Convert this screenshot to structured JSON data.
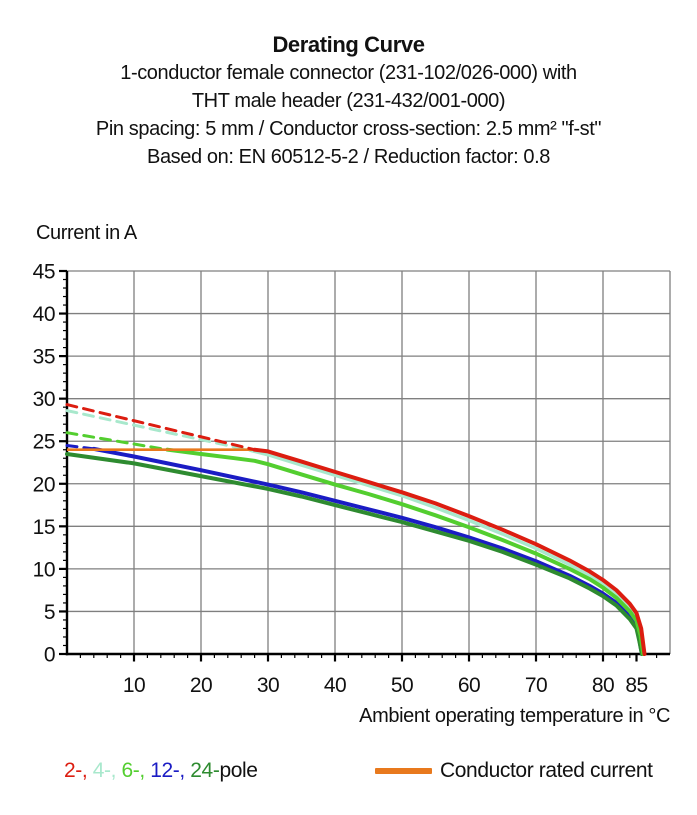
{
  "header": {
    "title": "Derating Curve",
    "subtitle_lines": [
      "1-conductor female connector (231-102/026-000) with",
      "THT male header (231-432/001-000)",
      "Pin spacing: 5 mm / Conductor cross-section: 2.5 mm² \"f-st\"",
      "Based on: EN 60512-5-2 / Reduction factor: 0.8"
    ]
  },
  "chart_data": {
    "type": "line",
    "title": "Derating Curve",
    "xlabel": "Ambient operating temperature in °C",
    "ylabel": "Current in A",
    "xlim": [
      0,
      90
    ],
    "ylim": [
      0,
      45
    ],
    "x_ticks": [
      10,
      20,
      30,
      40,
      50,
      60,
      70,
      80,
      85
    ],
    "y_ticks": [
      0,
      5,
      10,
      15,
      20,
      25,
      30,
      35,
      40,
      45
    ],
    "grid": true,
    "grid_color": "#7f7f7f",
    "axis_color": "#000000",
    "legend_position": "bottom",
    "series": [
      {
        "name": "2-pole",
        "color": "#dc1d10",
        "dashed_points": [
          [
            0,
            29.3
          ],
          [
            28,
            24.0
          ]
        ],
        "points": [
          [
            28,
            24.0
          ],
          [
            30,
            23.8
          ],
          [
            35,
            22.6
          ],
          [
            40,
            21.4
          ],
          [
            45,
            20.2
          ],
          [
            50,
            19.0
          ],
          [
            55,
            17.7
          ],
          [
            60,
            16.2
          ],
          [
            65,
            14.6
          ],
          [
            70,
            12.9
          ],
          [
            75,
            11.0
          ],
          [
            78,
            9.7
          ],
          [
            80,
            8.7
          ],
          [
            82,
            7.5
          ],
          [
            84,
            5.9
          ],
          [
            85,
            4.8
          ],
          [
            85.7,
            3.0
          ],
          [
            86.2,
            0
          ]
        ]
      },
      {
        "name": "4-pole",
        "color": "#a8e8cc",
        "dashed_points": [
          [
            0,
            28.6
          ],
          [
            27.5,
            23.9
          ]
        ],
        "points": [
          [
            27.5,
            23.9
          ],
          [
            30,
            23.4
          ],
          [
            35,
            22.2
          ],
          [
            40,
            21.0
          ],
          [
            45,
            19.8
          ],
          [
            50,
            18.6
          ],
          [
            55,
            17.2
          ],
          [
            60,
            15.7
          ],
          [
            65,
            14.1
          ],
          [
            70,
            12.4
          ],
          [
            75,
            10.5
          ],
          [
            78,
            9.2
          ],
          [
            80,
            8.2
          ],
          [
            82,
            7.0
          ],
          [
            84,
            5.4
          ],
          [
            85,
            4.3
          ],
          [
            85.6,
            2.5
          ],
          [
            86,
            0
          ]
        ]
      },
      {
        "name": "6-pole",
        "color": "#53ce2f",
        "dashed_points": [
          [
            0,
            26.0
          ],
          [
            15,
            24.0
          ]
        ],
        "points": [
          [
            15,
            24.0
          ],
          [
            20,
            23.5
          ],
          [
            25,
            23.0
          ],
          [
            28,
            22.7
          ],
          [
            30,
            22.3
          ],
          [
            35,
            21.1
          ],
          [
            40,
            19.9
          ],
          [
            45,
            18.8
          ],
          [
            50,
            17.6
          ],
          [
            55,
            16.3
          ],
          [
            60,
            14.9
          ],
          [
            65,
            13.4
          ],
          [
            70,
            11.8
          ],
          [
            75,
            10.0
          ],
          [
            78,
            8.8
          ],
          [
            80,
            7.8
          ],
          [
            82,
            6.6
          ],
          [
            84,
            5.0
          ],
          [
            85,
            3.9
          ],
          [
            85.6,
            2.2
          ],
          [
            86,
            0
          ]
        ]
      },
      {
        "name": "12-pole",
        "color": "#1b1cc4",
        "dashed_points": [
          [
            0,
            24.5
          ],
          [
            4,
            24.1
          ]
        ],
        "points": [
          [
            4,
            24.1
          ],
          [
            10,
            23.2
          ],
          [
            20,
            21.6
          ],
          [
            30,
            19.9
          ],
          [
            35,
            19.0
          ],
          [
            40,
            18.0
          ],
          [
            45,
            17.0
          ],
          [
            50,
            16.0
          ],
          [
            55,
            14.9
          ],
          [
            60,
            13.7
          ],
          [
            65,
            12.4
          ],
          [
            70,
            10.9
          ],
          [
            75,
            9.2
          ],
          [
            78,
            8.0
          ],
          [
            80,
            7.1
          ],
          [
            82,
            6.0
          ],
          [
            84,
            4.4
          ],
          [
            85,
            3.3
          ],
          [
            85.4,
            1.8
          ],
          [
            85.8,
            0
          ]
        ]
      },
      {
        "name": "24-pole",
        "color": "#2e8b30",
        "points": [
          [
            0,
            23.5
          ],
          [
            10,
            22.4
          ],
          [
            20,
            20.9
          ],
          [
            30,
            19.4
          ],
          [
            35,
            18.5
          ],
          [
            40,
            17.5
          ],
          [
            45,
            16.5
          ],
          [
            50,
            15.5
          ],
          [
            55,
            14.4
          ],
          [
            60,
            13.3
          ],
          [
            65,
            12.0
          ],
          [
            70,
            10.5
          ],
          [
            75,
            8.9
          ],
          [
            78,
            7.7
          ],
          [
            80,
            6.8
          ],
          [
            82,
            5.7
          ],
          [
            84,
            4.1
          ],
          [
            85,
            3.0
          ],
          [
            85.4,
            1.6
          ],
          [
            85.8,
            0
          ]
        ]
      },
      {
        "name": "Conductor rated current",
        "role": "rated",
        "color": "#e8791d",
        "points": [
          [
            0,
            24.0
          ],
          [
            28,
            24.0
          ]
        ]
      }
    ]
  },
  "legend": {
    "poles": [
      {
        "text": "2-, ",
        "color": "#dc1d10"
      },
      {
        "text": "4-, ",
        "color": "#a8e8cc"
      },
      {
        "text": "6-, ",
        "color": "#53ce2f"
      },
      {
        "text": "12-, ",
        "color": "#1b1cc4"
      },
      {
        "text": "24-",
        "color": "#2e8b30"
      }
    ],
    "pole_suffix": "pole",
    "rated_label": "Conductor rated current",
    "rated_color": "#e8791d"
  }
}
